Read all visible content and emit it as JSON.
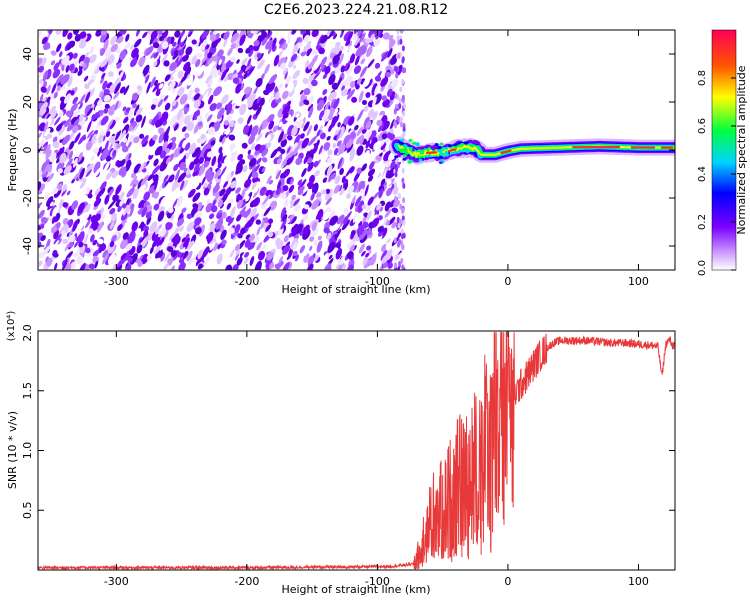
{
  "title": "C2E6.2023.224.21.08.R12",
  "chart_data": [
    {
      "type": "heatmap",
      "xlabel": "Height of straight line (km)",
      "ylabel": "Frequency (Hz)",
      "xlim": [
        -360,
        128
      ],
      "ylim": [
        -50,
        50
      ],
      "xticks": [
        -300,
        -200,
        -100,
        0,
        100
      ],
      "yticks": [
        -40,
        -20,
        0,
        20,
        40
      ],
      "noise_region_x": [
        -360,
        -83
      ],
      "tone_track": [
        {
          "x": -85,
          "y": 2
        },
        {
          "x": -78,
          "y": 0
        },
        {
          "x": -70,
          "y": -2
        },
        {
          "x": -60,
          "y": -1
        },
        {
          "x": -50,
          "y": -1
        },
        {
          "x": -42,
          "y": 0
        },
        {
          "x": -35,
          "y": 1
        },
        {
          "x": -25,
          "y": 1
        },
        {
          "x": -20,
          "y": -2
        },
        {
          "x": -10,
          "y": -2
        },
        {
          "x": 0,
          "y": -0.5
        },
        {
          "x": 10,
          "y": 0.5
        },
        {
          "x": 40,
          "y": 1
        },
        {
          "x": 70,
          "y": 1.5
        },
        {
          "x": 100,
          "y": 1
        },
        {
          "x": 128,
          "y": 1
        }
      ],
      "colorbar": {
        "label": "Normalized spectral amplitude",
        "ticks": [
          0.0,
          0.2,
          0.4,
          0.6,
          0.8
        ],
        "range": [
          0,
          1
        ],
        "colors": [
          "#ffffff",
          "#7a00ff",
          "#0000ff",
          "#00d5ff",
          "#00ff40",
          "#ffff00",
          "#ff5500",
          "#ff0055"
        ]
      }
    },
    {
      "type": "line",
      "xlabel": "Height of straight line (km)",
      "ylabel": "SNR (10 * v/v)",
      "y_multiplier": "(x10⁴)",
      "xlim": [
        -360,
        128
      ],
      "ylim": [
        0,
        20000
      ],
      "xticks": [
        -300,
        -200,
        -100,
        0,
        100
      ],
      "yticks": [
        5000,
        10000,
        15000,
        20000
      ],
      "ytick_labels": [
        "0.5",
        "1.0",
        "1.5",
        "2.0"
      ],
      "color": "#e8393a",
      "series": [
        {
          "x": [
            -360,
            -300,
            -200,
            -120,
            -90,
            -72,
            -66,
            -62,
            -58,
            -54,
            -50,
            -46,
            -42,
            -38,
            -34,
            -30,
            -26,
            -22,
            -18,
            -14,
            -10,
            -6,
            -2,
            2,
            6,
            10,
            15,
            20,
            25,
            30,
            35,
            40,
            50,
            60,
            70,
            80,
            90,
            100,
            110,
            115,
            118,
            121,
            124,
            126,
            128
          ],
          "y": [
            200,
            200,
            200,
            250,
            300,
            500,
            1500,
            3000,
            4000,
            4500,
            5000,
            5500,
            6500,
            6800,
            7000,
            7500,
            8000,
            8500,
            9500,
            10500,
            11500,
            12500,
            13200,
            14000,
            14800,
            15500,
            16300,
            17200,
            18000,
            18600,
            19000,
            19200,
            19200,
            19200,
            19100,
            19000,
            19000,
            18900,
            18800,
            18700,
            16200,
            18900,
            19300,
            18800,
            18800
          ]
        }
      ]
    }
  ]
}
